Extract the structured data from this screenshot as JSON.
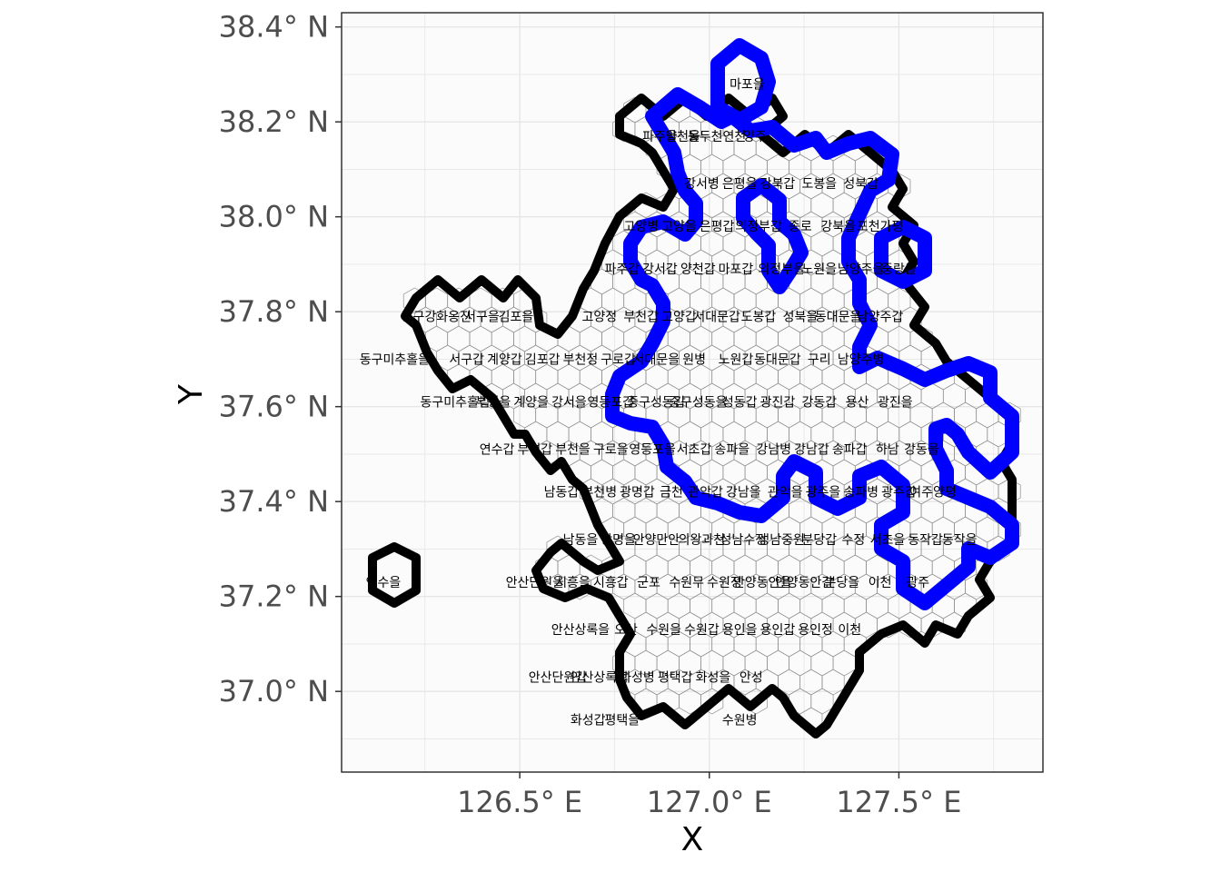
{
  "chart_data": {
    "type": "map",
    "xlabel": "X",
    "ylabel": "Y",
    "xlim": [
      126.03,
      127.88
    ],
    "ylim": [
      36.83,
      38.43
    ],
    "x_ticks": [
      {
        "value": 126.5,
        "label": "126.5° E"
      },
      {
        "value": 127.0,
        "label": "127.0° E"
      },
      {
        "value": 127.5,
        "label": "127.5° E"
      }
    ],
    "y_ticks": [
      {
        "value": 37.0,
        "label": "37.0° N"
      },
      {
        "value": 37.2,
        "label": "37.2° N"
      },
      {
        "value": 37.4,
        "label": "37.4° N"
      },
      {
        "value": 37.6,
        "label": "37.6° N"
      },
      {
        "value": 37.8,
        "label": "37.8° N"
      },
      {
        "value": 38.0,
        "label": "38.0° N"
      },
      {
        "value": 38.2,
        "label": "38.2° N"
      },
      {
        "value": 38.4,
        "label": "38.4° N"
      }
    ],
    "grid": true,
    "colors": {
      "panel_bg": "#fbfbfb",
      "grid": "#e6e6e6",
      "hex_line": "#8c8c8c",
      "outline_outer": "#000000",
      "outline_seoul": "#0000ff"
    },
    "hex_labels": [
      {
        "text": "마포을",
        "x": 127.1,
        "y": 38.28
      },
      {
        "text": "파주을",
        "x": 126.87,
        "y": 38.17
      },
      {
        "text": "양천을",
        "x": 126.93,
        "y": 38.17
      },
      {
        "text": "동두천연천",
        "x": 127.02,
        "y": 38.17
      },
      {
        "text": "양주",
        "x": 127.12,
        "y": 38.17
      },
      {
        "text": "강서병",
        "x": 126.98,
        "y": 38.07
      },
      {
        "text": "은평을",
        "x": 127.08,
        "y": 38.07
      },
      {
        "text": "강북갑",
        "x": 127.18,
        "y": 38.07
      },
      {
        "text": "도봉을",
        "x": 127.29,
        "y": 38.07
      },
      {
        "text": "성북갑",
        "x": 127.4,
        "y": 38.07
      },
      {
        "text": "고양병",
        "x": 126.82,
        "y": 37.98
      },
      {
        "text": "고양을",
        "x": 126.92,
        "y": 37.98
      },
      {
        "text": "은평갑",
        "x": 127.02,
        "y": 37.98
      },
      {
        "text": "의정부갑",
        "x": 127.13,
        "y": 37.98
      },
      {
        "text": "종로",
        "x": 127.24,
        "y": 37.98
      },
      {
        "text": "강북을",
        "x": 127.34,
        "y": 37.98
      },
      {
        "text": "포천가평",
        "x": 127.45,
        "y": 37.98
      },
      {
        "text": "파주갑",
        "x": 126.77,
        "y": 37.89
      },
      {
        "text": "강서갑",
        "x": 126.87,
        "y": 37.89
      },
      {
        "text": "양천갑",
        "x": 126.97,
        "y": 37.89
      },
      {
        "text": "마포갑",
        "x": 127.07,
        "y": 37.89
      },
      {
        "text": "의정부을",
        "x": 127.19,
        "y": 37.89
      },
      {
        "text": "노원을",
        "x": 127.29,
        "y": 37.89
      },
      {
        "text": "남양주을",
        "x": 127.4,
        "y": 37.89
      },
      {
        "text": "중랑을",
        "x": 127.5,
        "y": 37.89
      },
      {
        "text": "중구강화옹진",
        "x": 126.28,
        "y": 37.79
      },
      {
        "text": "서구을",
        "x": 126.4,
        "y": 37.79
      },
      {
        "text": "김포을",
        "x": 126.49,
        "y": 37.79
      },
      {
        "text": "고양정",
        "x": 126.71,
        "y": 37.79
      },
      {
        "text": "부천갑",
        "x": 126.82,
        "y": 37.79
      },
      {
        "text": "고양갑",
        "x": 126.92,
        "y": 37.79
      },
      {
        "text": "서대문갑",
        "x": 127.02,
        "y": 37.79
      },
      {
        "text": "도봉갑",
        "x": 127.13,
        "y": 37.79
      },
      {
        "text": "성북을",
        "x": 127.24,
        "y": 37.79
      },
      {
        "text": "동대문을",
        "x": 127.34,
        "y": 37.79
      },
      {
        "text": "남양주갑",
        "x": 127.45,
        "y": 37.79
      },
      {
        "text": "동구미추홀을",
        "x": 126.17,
        "y": 37.7
      },
      {
        "text": "서구갑",
        "x": 126.36,
        "y": 37.7
      },
      {
        "text": "계양갑",
        "x": 126.46,
        "y": 37.7
      },
      {
        "text": "김포갑",
        "x": 126.56,
        "y": 37.7
      },
      {
        "text": "부천정",
        "x": 126.66,
        "y": 37.7
      },
      {
        "text": "구로갑",
        "x": 126.76,
        "y": 37.7
      },
      {
        "text": "서대문을",
        "x": 126.86,
        "y": 37.7
      },
      {
        "text": "원병",
        "x": 126.96,
        "y": 37.7
      },
      {
        "text": "노원갑",
        "x": 127.07,
        "y": 37.7
      },
      {
        "text": "동대문갑",
        "x": 127.18,
        "y": 37.7
      },
      {
        "text": "구리",
        "x": 127.29,
        "y": 37.7
      },
      {
        "text": "남양주병",
        "x": 127.4,
        "y": 37.7
      },
      {
        "text": "동구미추홀갑",
        "x": 126.33,
        "y": 37.61
      },
      {
        "text": "부평을",
        "x": 126.43,
        "y": 37.61
      },
      {
        "text": "계양을",
        "x": 126.53,
        "y": 37.61
      },
      {
        "text": "강서을",
        "x": 126.63,
        "y": 37.61
      },
      {
        "text": "영등포갑",
        "x": 126.74,
        "y": 37.61
      },
      {
        "text": "중구성동갑",
        "x": 126.86,
        "y": 37.61
      },
      {
        "text": "중구성동을",
        "x": 126.97,
        "y": 37.61
      },
      {
        "text": "성동갑",
        "x": 127.08,
        "y": 37.61
      },
      {
        "text": "광진갑",
        "x": 127.18,
        "y": 37.61
      },
      {
        "text": "강동갑",
        "x": 127.29,
        "y": 37.61
      },
      {
        "text": "용산",
        "x": 127.39,
        "y": 37.61
      },
      {
        "text": "광진을",
        "x": 127.49,
        "y": 37.61
      },
      {
        "text": "연수갑",
        "x": 126.44,
        "y": 37.51
      },
      {
        "text": "부평갑",
        "x": 126.54,
        "y": 37.51
      },
      {
        "text": "부천을",
        "x": 126.64,
        "y": 37.51
      },
      {
        "text": "구로을",
        "x": 126.74,
        "y": 37.51
      },
      {
        "text": "영등포을",
        "x": 126.85,
        "y": 37.51
      },
      {
        "text": "서초갑",
        "x": 126.96,
        "y": 37.51
      },
      {
        "text": "송파을",
        "x": 127.06,
        "y": 37.51
      },
      {
        "text": "강남병",
        "x": 127.17,
        "y": 37.51
      },
      {
        "text": "강남갑",
        "x": 127.27,
        "y": 37.51
      },
      {
        "text": "송파갑",
        "x": 127.37,
        "y": 37.51
      },
      {
        "text": "하남",
        "x": 127.47,
        "y": 37.51
      },
      {
        "text": "강동을",
        "x": 127.56,
        "y": 37.51
      },
      {
        "text": "남동갑",
        "x": 126.61,
        "y": 37.42
      },
      {
        "text": "부천병",
        "x": 126.71,
        "y": 37.42
      },
      {
        "text": "광명갑",
        "x": 126.81,
        "y": 37.42
      },
      {
        "text": "금천",
        "x": 126.9,
        "y": 37.42
      },
      {
        "text": "관악갑",
        "x": 126.99,
        "y": 37.42
      },
      {
        "text": "강남을",
        "x": 127.09,
        "y": 37.42
      },
      {
        "text": "관악을",
        "x": 127.2,
        "y": 37.42
      },
      {
        "text": "광주을",
        "x": 127.3,
        "y": 37.42
      },
      {
        "text": "송파병",
        "x": 127.4,
        "y": 37.42
      },
      {
        "text": "광주갑",
        "x": 127.5,
        "y": 37.42
      },
      {
        "text": "여주양평",
        "x": 127.59,
        "y": 37.42
      },
      {
        "text": "남동을",
        "x": 126.66,
        "y": 37.32
      },
      {
        "text": "광명을",
        "x": 126.76,
        "y": 37.32
      },
      {
        "text": "안양만안",
        "x": 126.86,
        "y": 37.32
      },
      {
        "text": "의왕과천",
        "x": 126.98,
        "y": 37.32
      },
      {
        "text": "성남수정",
        "x": 127.09,
        "y": 37.32
      },
      {
        "text": "성남중원",
        "x": 127.19,
        "y": 37.32
      },
      {
        "text": "분당갑",
        "x": 127.29,
        "y": 37.32
      },
      {
        "text": "수정",
        "x": 127.38,
        "y": 37.32
      },
      {
        "text": "서초을",
        "x": 127.47,
        "y": 37.32
      },
      {
        "text": "동작갑",
        "x": 127.57,
        "y": 37.32
      },
      {
        "text": "동작을",
        "x": 127.66,
        "y": 37.32
      },
      {
        "text": "연수을",
        "x": 126.14,
        "y": 37.23
      },
      {
        "text": "안산단원을",
        "x": 126.54,
        "y": 37.23
      },
      {
        "text": "시흥을",
        "x": 126.64,
        "y": 37.23
      },
      {
        "text": "시흥갑",
        "x": 126.74,
        "y": 37.23
      },
      {
        "text": "군포",
        "x": 126.84,
        "y": 37.23
      },
      {
        "text": "수원무",
        "x": 126.94,
        "y": 37.23
      },
      {
        "text": "수원정",
        "x": 127.04,
        "y": 37.23
      },
      {
        "text": "안양동안을",
        "x": 127.14,
        "y": 37.23
      },
      {
        "text": "안양동안갑",
        "x": 127.25,
        "y": 37.23
      },
      {
        "text": "분당을",
        "x": 127.35,
        "y": 37.23
      },
      {
        "text": "이천",
        "x": 127.45,
        "y": 37.23
      },
      {
        "text": "광주",
        "x": 127.55,
        "y": 37.23
      },
      {
        "text": "안산상록을",
        "x": 126.66,
        "y": 37.13
      },
      {
        "text": "오산",
        "x": 126.78,
        "y": 37.13
      },
      {
        "text": "수원을",
        "x": 126.88,
        "y": 37.13
      },
      {
        "text": "수원갑",
        "x": 126.98,
        "y": 37.13
      },
      {
        "text": "용인을",
        "x": 127.08,
        "y": 37.13
      },
      {
        "text": "용인갑",
        "x": 127.18,
        "y": 37.13
      },
      {
        "text": "용인정",
        "x": 127.28,
        "y": 37.13
      },
      {
        "text": "이천",
        "x": 127.37,
        "y": 37.13
      },
      {
        "text": "안산단원갑",
        "x": 126.6,
        "y": 37.03
      },
      {
        "text": "안산상록갑",
        "x": 126.71,
        "y": 37.03
      },
      {
        "text": "화성병",
        "x": 126.81,
        "y": 37.03
      },
      {
        "text": "평택갑",
        "x": 126.91,
        "y": 37.03
      },
      {
        "text": "화성을",
        "x": 127.01,
        "y": 37.03
      },
      {
        "text": "안성",
        "x": 127.11,
        "y": 37.03
      },
      {
        "text": "화성갑",
        "x": 126.68,
        "y": 36.94
      },
      {
        "text": "평택을",
        "x": 126.77,
        "y": 36.94
      },
      {
        "text": "수원병",
        "x": 127.08,
        "y": 36.94
      }
    ]
  }
}
